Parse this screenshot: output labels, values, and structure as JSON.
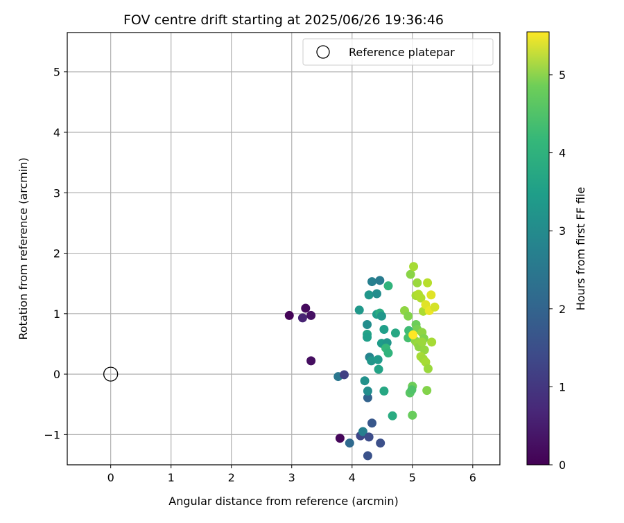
{
  "chart_data": {
    "type": "scatter",
    "title": "FOV centre drift starting at 2025/06/26 19:36:46",
    "xlabel": "Angular distance from reference (arcmin)",
    "ylabel": "Rotation from reference (arcmin)",
    "xlim": [
      -0.72,
      6.45
    ],
    "ylim": [
      -1.5,
      5.65
    ],
    "xticks": [
      0,
      1,
      2,
      3,
      4,
      5,
      6
    ],
    "yticks": [
      -1,
      0,
      1,
      2,
      3,
      4,
      5
    ],
    "xtick_labels": [
      "0",
      "1",
      "2",
      "3",
      "4",
      "5",
      "6"
    ],
    "ytick_labels": [
      "−1",
      "0",
      "1",
      "2",
      "3",
      "4",
      "5"
    ],
    "grid": true,
    "legend": {
      "placement": "top-right",
      "entries": [
        {
          "label": "Reference platepar",
          "marker": "open-circle"
        }
      ]
    },
    "reference_point": {
      "x": 0,
      "y": 0
    },
    "colorbar": {
      "label": "Hours from first FF file",
      "colormap": "viridis",
      "min": 0,
      "max": 5.55,
      "ticks": [
        0,
        1,
        2,
        3,
        4,
        5
      ],
      "tick_labels": [
        "0",
        "1",
        "2",
        "3",
        "4",
        "5"
      ]
    },
    "points": [
      {
        "x": 2.96,
        "y": 0.97,
        "hours": 0.05
      },
      {
        "x": 3.23,
        "y": 1.09,
        "hours": 0.15
      },
      {
        "x": 3.18,
        "y": 0.93,
        "hours": 0.55
      },
      {
        "x": 3.32,
        "y": 0.97,
        "hours": 0.25
      },
      {
        "x": 3.32,
        "y": 0.22,
        "hours": 0.2
      },
      {
        "x": 3.8,
        "y": -1.06,
        "hours": 0.1
      },
      {
        "x": 3.77,
        "y": -0.04,
        "hours": 2.2
      },
      {
        "x": 3.87,
        "y": -0.01,
        "hours": 1.05
      },
      {
        "x": 3.96,
        "y": -1.14,
        "hours": 1.9
      },
      {
        "x": 4.14,
        "y": -1.02,
        "hours": 1.2
      },
      {
        "x": 4.18,
        "y": -0.95,
        "hours": 2.4
      },
      {
        "x": 4.28,
        "y": -1.04,
        "hours": 1.3
      },
      {
        "x": 4.26,
        "y": -1.35,
        "hours": 1.4
      },
      {
        "x": 4.47,
        "y": -1.14,
        "hours": 1.35
      },
      {
        "x": 4.33,
        "y": -0.81,
        "hours": 1.5
      },
      {
        "x": 4.26,
        "y": -0.39,
        "hours": 1.75
      },
      {
        "x": 4.26,
        "y": -0.28,
        "hours": 2.7
      },
      {
        "x": 4.21,
        "y": -0.11,
        "hours": 2.8
      },
      {
        "x": 4.12,
        "y": 1.06,
        "hours": 2.95
      },
      {
        "x": 4.25,
        "y": 0.82,
        "hours": 2.7
      },
      {
        "x": 4.25,
        "y": 0.66,
        "hours": 3.2
      },
      {
        "x": 4.25,
        "y": 0.61,
        "hours": 3.1
      },
      {
        "x": 4.29,
        "y": 0.28,
        "hours": 2.5
      },
      {
        "x": 4.32,
        "y": 0.22,
        "hours": 2.9
      },
      {
        "x": 4.43,
        "y": 0.24,
        "hours": 3.0
      },
      {
        "x": 4.44,
        "y": 0.08,
        "hours": 3.2
      },
      {
        "x": 4.28,
        "y": 1.31,
        "hours": 2.9
      },
      {
        "x": 4.33,
        "y": 1.53,
        "hours": 2.4
      },
      {
        "x": 4.41,
        "y": 1.33,
        "hours": 2.7
      },
      {
        "x": 4.46,
        "y": 1.55,
        "hours": 2.3
      },
      {
        "x": 4.41,
        "y": 0.99,
        "hours": 3.05
      },
      {
        "x": 4.46,
        "y": 1.01,
        "hours": 3.4
      },
      {
        "x": 4.49,
        "y": 0.96,
        "hours": 2.9
      },
      {
        "x": 4.49,
        "y": 0.51,
        "hours": 3.05
      },
      {
        "x": 4.53,
        "y": 0.74,
        "hours": 3.1
      },
      {
        "x": 4.58,
        "y": 0.52,
        "hours": 2.9
      },
      {
        "x": 4.56,
        "y": 0.43,
        "hours": 3.7
      },
      {
        "x": 4.6,
        "y": 0.35,
        "hours": 3.6
      },
      {
        "x": 4.6,
        "y": 1.46,
        "hours": 3.6
      },
      {
        "x": 4.72,
        "y": 0.68,
        "hours": 3.3
      },
      {
        "x": 4.53,
        "y": -0.28,
        "hours": 3.3
      },
      {
        "x": 4.67,
        "y": -0.69,
        "hours": 3.4
      },
      {
        "x": 4.87,
        "y": 1.05,
        "hours": 4.6
      },
      {
        "x": 4.93,
        "y": 0.96,
        "hours": 4.5
      },
      {
        "x": 4.94,
        "y": 0.72,
        "hours": 3.8
      },
      {
        "x": 4.93,
        "y": 0.6,
        "hours": 3.9
      },
      {
        "x": 4.96,
        "y": -0.31,
        "hours": 4.1
      },
      {
        "x": 5.0,
        "y": -0.2,
        "hours": 4.3
      },
      {
        "x": 4.99,
        "y": -0.26,
        "hours": 4.0
      },
      {
        "x": 5.0,
        "y": -0.68,
        "hours": 4.25
      },
      {
        "x": 4.97,
        "y": 1.65,
        "hours": 4.55
      },
      {
        "x": 5.02,
        "y": 1.78,
        "hours": 4.8
      },
      {
        "x": 5.08,
        "y": 1.51,
        "hours": 4.7
      },
      {
        "x": 5.06,
        "y": 1.3,
        "hours": 4.8
      },
      {
        "x": 5.1,
        "y": 1.32,
        "hours": 4.9
      },
      {
        "x": 5.14,
        "y": 1.26,
        "hours": 4.9
      },
      {
        "x": 5.18,
        "y": 1.04,
        "hours": 4.85
      },
      {
        "x": 5.06,
        "y": 0.82,
        "hours": 4.3
      },
      {
        "x": 5.08,
        "y": 0.74,
        "hours": 4.4
      },
      {
        "x": 5.05,
        "y": 0.55,
        "hours": 4.6
      },
      {
        "x": 5.09,
        "y": 0.5,
        "hours": 4.7
      },
      {
        "x": 5.11,
        "y": 0.45,
        "hours": 4.6
      },
      {
        "x": 5.16,
        "y": 0.69,
        "hours": 4.6
      },
      {
        "x": 5.19,
        "y": 0.59,
        "hours": 4.5
      },
      {
        "x": 5.16,
        "y": 0.53,
        "hours": 4.7
      },
      {
        "x": 5.2,
        "y": 0.4,
        "hours": 4.65
      },
      {
        "x": 5.14,
        "y": 0.29,
        "hours": 4.8
      },
      {
        "x": 5.18,
        "y": 0.25,
        "hours": 4.75
      },
      {
        "x": 5.22,
        "y": 0.2,
        "hours": 4.8
      },
      {
        "x": 5.26,
        "y": 0.09,
        "hours": 4.7
      },
      {
        "x": 5.24,
        "y": -0.27,
        "hours": 4.5
      },
      {
        "x": 5.22,
        "y": 1.15,
        "hours": 5.3
      },
      {
        "x": 5.25,
        "y": 1.51,
        "hours": 4.95
      },
      {
        "x": 5.28,
        "y": 1.05,
        "hours": 5.4
      },
      {
        "x": 5.31,
        "y": 1.31,
        "hours": 5.3
      },
      {
        "x": 5.32,
        "y": 0.53,
        "hours": 4.8
      },
      {
        "x": 5.37,
        "y": 1.11,
        "hours": 5.2
      },
      {
        "x": 5.01,
        "y": 0.65,
        "hours": 5.55
      }
    ]
  }
}
